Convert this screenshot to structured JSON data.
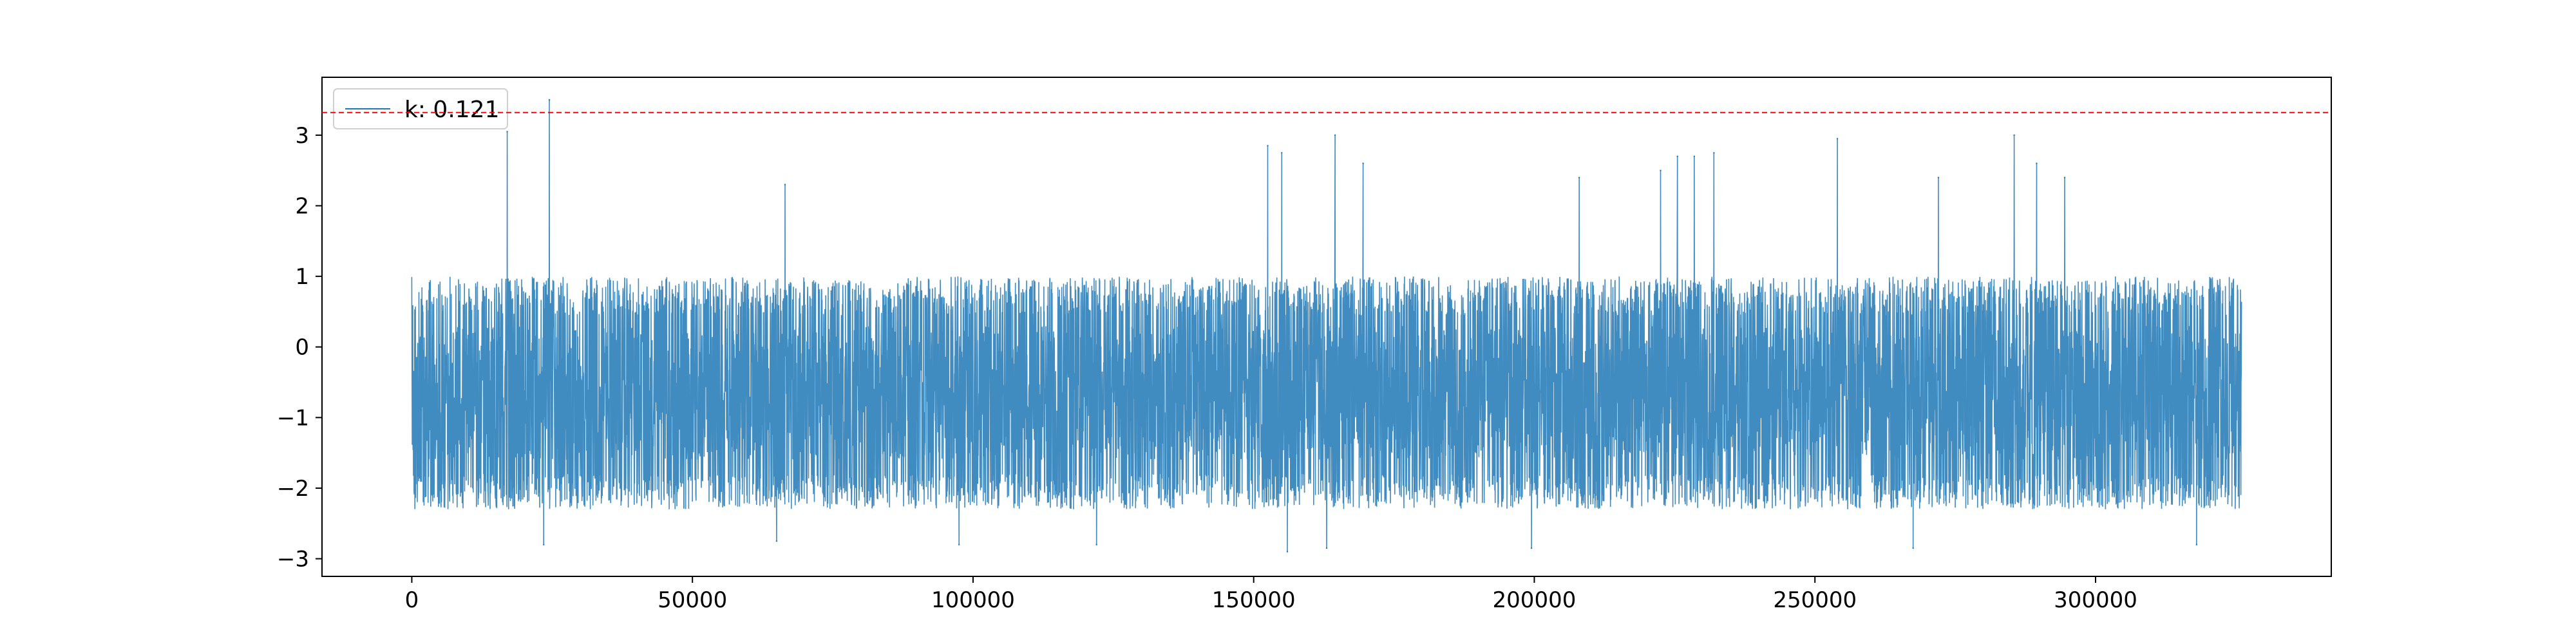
{
  "chart_data": {
    "type": "line",
    "title": "",
    "xlabel": "",
    "ylabel": "",
    "xlim": [
      -16000,
      342000
    ],
    "ylim": [
      -3.25,
      3.82
    ],
    "x_ticks": [
      0,
      50000,
      100000,
      150000,
      200000,
      250000,
      300000
    ],
    "x_tick_labels": [
      "0",
      "50000",
      "100000",
      "150000",
      "200000",
      "250000",
      "300000"
    ],
    "y_ticks": [
      -3,
      -2,
      -1,
      0,
      1,
      2,
      3
    ],
    "y_tick_labels": [
      "−3",
      "−2",
      "−1",
      "0",
      "1",
      "2",
      "3"
    ],
    "grid": false,
    "legend": {
      "position": "top-left",
      "entries": [
        "k: 0.121"
      ]
    },
    "series": [
      {
        "name": "k: 0.121",
        "color": "#1f77b4",
        "x_range": [
          0,
          326000
        ],
        "typical_range": [
          -2.3,
          1.0
        ],
        "peaks": [
          {
            "x": 17000,
            "y": 3.05
          },
          {
            "x": 24500,
            "y": 3.5
          },
          {
            "x": 66500,
            "y": 2.3
          },
          {
            "x": 152500,
            "y": 2.85
          },
          {
            "x": 155000,
            "y": 2.75
          },
          {
            "x": 164500,
            "y": 3.0
          },
          {
            "x": 169500,
            "y": 2.6
          },
          {
            "x": 208000,
            "y": 2.4
          },
          {
            "x": 222500,
            "y": 2.5
          },
          {
            "x": 225500,
            "y": 2.7
          },
          {
            "x": 228500,
            "y": 2.7
          },
          {
            "x": 232000,
            "y": 2.75
          },
          {
            "x": 254000,
            "y": 2.95
          },
          {
            "x": 272000,
            "y": 2.4
          },
          {
            "x": 285500,
            "y": 3.0
          },
          {
            "x": 289500,
            "y": 2.6
          },
          {
            "x": 294500,
            "y": 2.4
          }
        ],
        "troughs": [
          {
            "x": 23500,
            "y": -2.8
          },
          {
            "x": 65000,
            "y": -2.75
          },
          {
            "x": 97500,
            "y": -2.8
          },
          {
            "x": 122000,
            "y": -2.8
          },
          {
            "x": 156000,
            "y": -2.9
          },
          {
            "x": 163000,
            "y": -2.85
          },
          {
            "x": 199500,
            "y": -2.85
          },
          {
            "x": 267500,
            "y": -2.85
          },
          {
            "x": 318000,
            "y": -2.8
          }
        ]
      }
    ],
    "hline": {
      "y": 3.32,
      "color": "#ff0000",
      "style": "dashed"
    },
    "colors": {
      "series": "#1f77b4",
      "hline": "#ff0000",
      "axes": "#000000"
    }
  }
}
